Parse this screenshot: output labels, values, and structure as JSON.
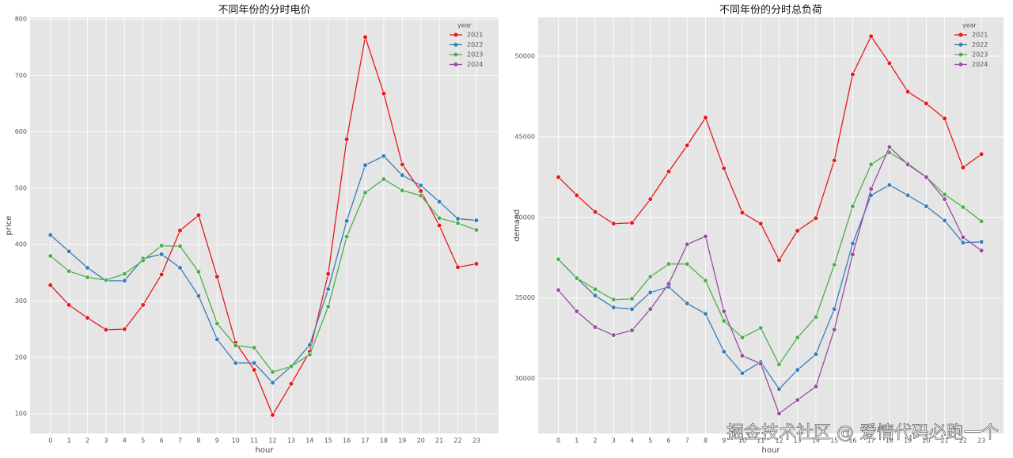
{
  "chart_data": [
    {
      "type": "line",
      "title": "不同年份的分时电价",
      "x_label": "hour",
      "y_label": "price",
      "legend_title": "year",
      "legend": "upper right",
      "grid": true,
      "x": [
        0,
        1,
        2,
        3,
        4,
        5,
        6,
        7,
        8,
        9,
        10,
        11,
        12,
        13,
        14,
        15,
        16,
        17,
        18,
        19,
        20,
        21,
        22,
        23
      ],
      "xlim": [
        -1.1,
        24.2
      ],
      "xticks": [
        0,
        1,
        2,
        3,
        4,
        5,
        6,
        7,
        8,
        9,
        10,
        11,
        12,
        13,
        14,
        15,
        16,
        17,
        18,
        19,
        20,
        21,
        22,
        23
      ],
      "ylim": [
        65,
        803
      ],
      "yticks": [
        100,
        200,
        300,
        400,
        500,
        600,
        700,
        800
      ],
      "series": [
        {
          "name": "2021",
          "color": "#e41a1c",
          "values": [
            328,
            293,
            270,
            249,
            250,
            293,
            347,
            425,
            452,
            343,
            226,
            178,
            98,
            153,
            210,
            348,
            587,
            768,
            668,
            542,
            495,
            434,
            360,
            366
          ]
        },
        {
          "name": "2022",
          "color": "#377eb8",
          "values": [
            417,
            388,
            359,
            336,
            336,
            375,
            383,
            359,
            309,
            232,
            190,
            190,
            155,
            184,
            222,
            321,
            442,
            541,
            557,
            523,
            505,
            476,
            446,
            443
          ]
        },
        {
          "name": "2023",
          "color": "#4daf4a",
          "values": [
            380,
            353,
            342,
            337,
            348,
            372,
            398,
            397,
            352,
            260,
            221,
            217,
            174,
            184,
            205,
            290,
            414,
            492,
            516,
            496,
            487,
            447,
            438,
            426
          ]
        },
        {
          "name": "2024",
          "color": "#984ea3",
          "values": [
            null,
            null,
            null,
            null,
            null,
            null,
            null,
            null,
            null,
            null,
            null,
            null,
            null,
            null,
            null,
            null,
            null,
            null,
            null,
            null,
            null,
            null,
            null,
            null
          ]
        }
      ]
    },
    {
      "type": "line",
      "title": "不同年份的分时总负荷",
      "x_label": "hour",
      "y_label": "demand",
      "legend_title": "year",
      "legend": "upper right",
      "grid": true,
      "x": [
        0,
        1,
        2,
        3,
        4,
        5,
        6,
        7,
        8,
        9,
        10,
        11,
        12,
        13,
        14,
        15,
        16,
        17,
        18,
        19,
        20,
        21,
        22,
        23
      ],
      "xlim": [
        -1.1,
        24.2
      ],
      "xticks": [
        0,
        1,
        2,
        3,
        4,
        5,
        6,
        7,
        8,
        9,
        10,
        11,
        12,
        13,
        14,
        15,
        16,
        17,
        18,
        19,
        20,
        21,
        22,
        23
      ],
      "ylim": [
        26600,
        52400
      ],
      "yticks": [
        30000,
        35000,
        40000,
        45000,
        50000
      ],
      "series": [
        {
          "name": "2021",
          "color": "#e41a1c",
          "values": [
            42500,
            41370,
            40340,
            39610,
            39660,
            41130,
            42840,
            44460,
            46180,
            43040,
            40290,
            39610,
            37350,
            39170,
            39950,
            43530,
            48870,
            51230,
            49560,
            47790,
            47060,
            46130,
            43090,
            43920
          ]
        },
        {
          "name": "2022",
          "color": "#377eb8",
          "values": [
            37400,
            36230,
            35150,
            34410,
            34310,
            35340,
            35690,
            34660,
            34020,
            31670,
            30340,
            31030,
            29360,
            30540,
            31520,
            34310,
            38380,
            41370,
            42010,
            41370,
            40690,
            39800,
            38430,
            38480
          ]
        },
        {
          "name": "2023",
          "color": "#4daf4a",
          "values": [
            37400,
            36230,
            35540,
            34900,
            34950,
            36320,
            37110,
            37110,
            36080,
            33580,
            32550,
            33140,
            30880,
            32550,
            33820,
            37060,
            40690,
            43280,
            44020,
            43330,
            42500,
            41420,
            40640,
            39760
          ]
        },
        {
          "name": "2024",
          "color": "#984ea3",
          "values": [
            35490,
            34170,
            33190,
            32700,
            32990,
            34310,
            35880,
            38330,
            38820,
            34170,
            31420,
            30930,
            27840,
            28680,
            29510,
            33040,
            37700,
            41760,
            44360,
            43280,
            42500,
            41130,
            38770,
            37940
          ]
        }
      ]
    }
  ],
  "watermark": "掘金技术社区 @ 爱情代码必跑一个"
}
